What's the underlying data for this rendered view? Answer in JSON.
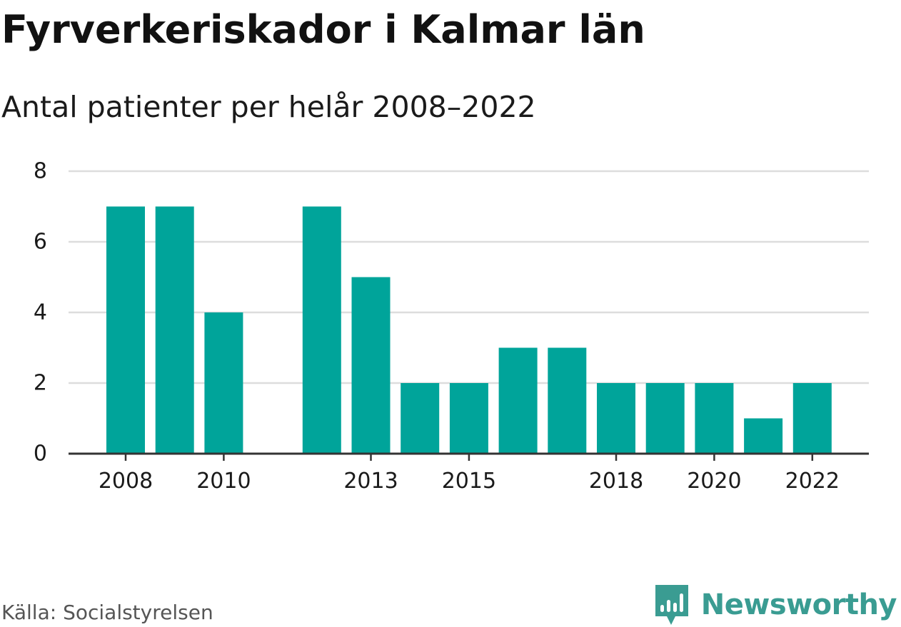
{
  "header": {
    "title": "Fyrverkeriskador i Kalmar län",
    "subtitle": "Antal patienter per helår 2008–2022"
  },
  "footer": {
    "source": "Källa: Socialstyrelsen",
    "brand": "Newsworthy",
    "brand_icon": "newsworthy-logo-icon"
  },
  "colors": {
    "bar": "#00a49a",
    "grid": "#dddddd",
    "axis": "#333333",
    "text": "#1a1a1a",
    "brand": "#3a9c92"
  },
  "chart_data": {
    "type": "bar",
    "x": [
      2008,
      2009,
      2010,
      2011,
      2012,
      2013,
      2014,
      2015,
      2016,
      2017,
      2018,
      2019,
      2020,
      2021,
      2022
    ],
    "values": [
      7,
      7,
      4,
      null,
      7,
      5,
      2,
      2,
      3,
      3,
      2,
      2,
      2,
      1,
      2
    ],
    "x_tick_labels": [
      "2008",
      "2010",
      "2013",
      "2015",
      "2018",
      "2020",
      "2022"
    ],
    "y_ticks": [
      0,
      2,
      4,
      6,
      8
    ],
    "ylim": [
      0,
      8
    ],
    "grid": true,
    "legend": false
  }
}
